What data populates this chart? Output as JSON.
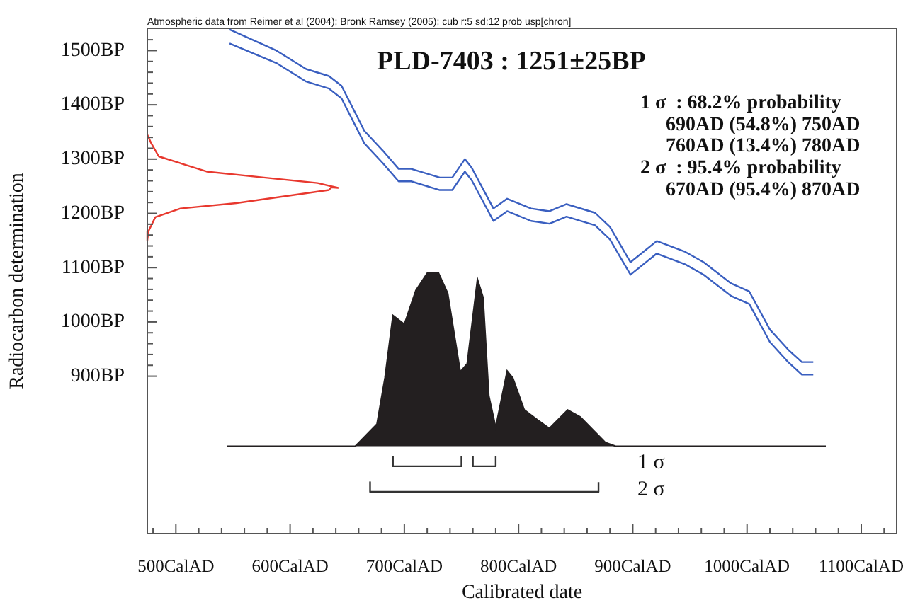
{
  "chart_data": {
    "type": "line",
    "title": "PLD-7403 : 1251±25BP",
    "subtitle": "Atmospheric data from Reimer et al (2004); Bronk Ramsey (2005); cub r:5 sd:12 prob usp[chron]",
    "xlabel": "Calibrated date",
    "ylabel": "Radiocarbon determination",
    "xlim": [
      475,
      1131
    ],
    "ylim": [
      610,
      1541
    ],
    "xticks": [
      {
        "value": 480,
        "label": null
      },
      {
        "value": 500,
        "label": "500CalAD"
      },
      {
        "value": 520,
        "label": null
      },
      {
        "value": 540,
        "label": null
      },
      {
        "value": 560,
        "label": null
      },
      {
        "value": 580,
        "label": null
      },
      {
        "value": 600,
        "label": "600CalAD"
      },
      {
        "value": 620,
        "label": null
      },
      {
        "value": 640,
        "label": null
      },
      {
        "value": 660,
        "label": null
      },
      {
        "value": 680,
        "label": null
      },
      {
        "value": 700,
        "label": "700CalAD"
      },
      {
        "value": 720,
        "label": null
      },
      {
        "value": 740,
        "label": null
      },
      {
        "value": 760,
        "label": null
      },
      {
        "value": 780,
        "label": null
      },
      {
        "value": 800,
        "label": "800CalAD"
      },
      {
        "value": 820,
        "label": null
      },
      {
        "value": 840,
        "label": null
      },
      {
        "value": 860,
        "label": null
      },
      {
        "value": 880,
        "label": null
      },
      {
        "value": 900,
        "label": "900CalAD"
      },
      {
        "value": 920,
        "label": null
      },
      {
        "value": 940,
        "label": null
      },
      {
        "value": 960,
        "label": null
      },
      {
        "value": 980,
        "label": null
      },
      {
        "value": 1000,
        "label": "1000CalAD"
      },
      {
        "value": 1020,
        "label": null
      },
      {
        "value": 1040,
        "label": null
      },
      {
        "value": 1060,
        "label": null
      },
      {
        "value": 1080,
        "label": null
      },
      {
        "value": 1100,
        "label": "1100CalAD"
      },
      {
        "value": 1120,
        "label": null
      }
    ],
    "yticks": [
      {
        "value": 900,
        "label": "900BP"
      },
      {
        "value": 920,
        "label": null
      },
      {
        "value": 940,
        "label": null
      },
      {
        "value": 960,
        "label": null
      },
      {
        "value": 980,
        "label": null
      },
      {
        "value": 1000,
        "label": "1000BP"
      },
      {
        "value": 1020,
        "label": null
      },
      {
        "value": 1040,
        "label": null
      },
      {
        "value": 1060,
        "label": null
      },
      {
        "value": 1080,
        "label": null
      },
      {
        "value": 1100,
        "label": "1100BP"
      },
      {
        "value": 1120,
        "label": null
      },
      {
        "value": 1140,
        "label": null
      },
      {
        "value": 1160,
        "label": null
      },
      {
        "value": 1180,
        "label": null
      },
      {
        "value": 1200,
        "label": "1200BP"
      },
      {
        "value": 1220,
        "label": null
      },
      {
        "value": 1240,
        "label": null
      },
      {
        "value": 1260,
        "label": null
      },
      {
        "value": 1280,
        "label": null
      },
      {
        "value": 1300,
        "label": "1300BP"
      },
      {
        "value": 1320,
        "label": null
      },
      {
        "value": 1340,
        "label": null
      },
      {
        "value": 1360,
        "label": null
      },
      {
        "value": 1380,
        "label": null
      },
      {
        "value": 1400,
        "label": "1400BP"
      },
      {
        "value": 1420,
        "label": null
      },
      {
        "value": 1440,
        "label": null
      },
      {
        "value": 1460,
        "label": null
      },
      {
        "value": 1480,
        "label": null
      },
      {
        "value": 1500,
        "label": "1500BP"
      },
      {
        "value": 1520,
        "label": null
      }
    ],
    "series": [
      {
        "type": "area",
        "color": "#231f20",
        "x": [
          545,
          657,
          676,
          683,
          690,
          700,
          710,
          720,
          730,
          738,
          749,
          755,
          764,
          769,
          774,
          780,
          790,
          795,
          805,
          815,
          827,
          843,
          854,
          876,
          885,
          1069
        ],
        "values": [
          771,
          771,
          812,
          897,
          1012,
          996,
          1058,
          1090,
          1090,
          1053,
          908,
          923,
          1079,
          1045,
          864,
          806,
          910,
          897,
          838,
          822,
          804,
          838,
          825,
          778,
          771,
          771
        ]
      },
      {
        "color": "#3a5fc0",
        "x": [
          547,
          588,
          614,
          634,
          645,
          665,
          681,
          695,
          706,
          731,
          742,
          753,
          759,
          778,
          790,
          811,
          827,
          842,
          867,
          880,
          898,
          921,
          946,
          962,
          986,
          1002,
          1020,
          1036,
          1048,
          1058
        ],
        "values": [
          1539,
          1500,
          1466,
          1453,
          1435,
          1352,
          1316,
          1282,
          1282,
          1266,
          1266,
          1300,
          1284,
          1209,
          1227,
          1209,
          1204,
          1217,
          1201,
          1175,
          1110,
          1149,
          1129,
          1110,
          1071,
          1056,
          986,
          949,
          926,
          926
        ]
      },
      {
        "color": "#3a5fc0",
        "x": [
          547,
          588,
          614,
          634,
          645,
          665,
          681,
          695,
          706,
          731,
          742,
          753,
          759,
          778,
          790,
          811,
          827,
          842,
          867,
          880,
          898,
          921,
          946,
          962,
          986,
          1002,
          1020,
          1036,
          1048,
          1058
        ],
        "values": [
          1513,
          1477,
          1443,
          1430,
          1412,
          1329,
          1293,
          1259,
          1259,
          1243,
          1243,
          1277,
          1261,
          1186,
          1204,
          1186,
          1181,
          1194,
          1178,
          1152,
          1087,
          1126,
          1106,
          1087,
          1048,
          1033,
          963,
          926,
          903,
          903
        ]
      },
      {
        "color": "#e8382e",
        "x": [
          475,
          478,
          485,
          527,
          577,
          624,
          642,
          636,
          634,
          553,
          504,
          482,
          476,
          475
        ],
        "values": [
          1345,
          1331,
          1305,
          1277,
          1266,
          1256,
          1247,
          1248,
          1243,
          1219,
          1209,
          1193,
          1167,
          1150
        ]
      },
      {
        "color": "#333333",
        "x": [
          690,
          690,
          750,
          750
        ],
        "values": [
          752,
          734,
          734,
          752
        ]
      },
      {
        "color": "#333333",
        "x": [
          760,
          760,
          780,
          780
        ],
        "values": [
          752,
          734,
          734,
          752
        ]
      },
      {
        "color": "#333333",
        "x": [
          670,
          670,
          870,
          870
        ],
        "values": [
          705,
          687,
          687,
          705
        ]
      }
    ],
    "annotations": [
      "1 σ  : 68.2% probability",
      "690AD (54.8%) 750AD",
      "760AD (13.4%) 780AD",
      "2 σ  : 95.4% probability",
      "670AD (95.4%) 870AD",
      "1 σ",
      "2 σ"
    ]
  }
}
